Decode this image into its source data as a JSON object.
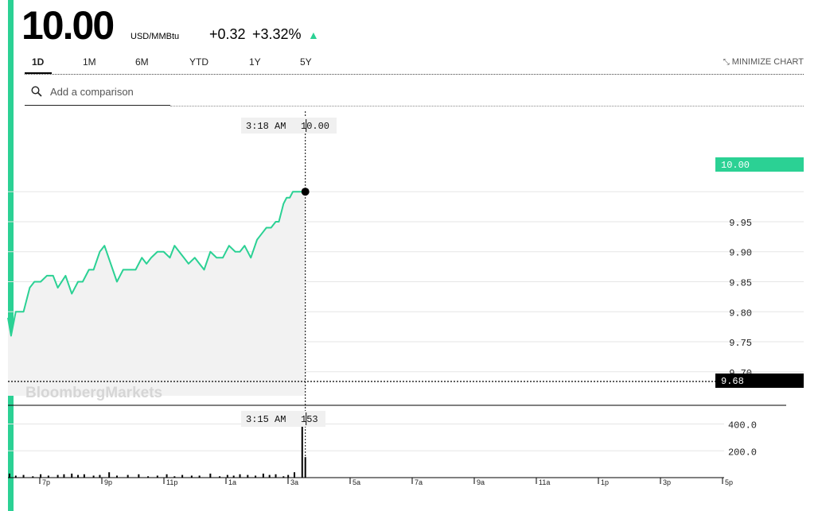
{
  "header": {
    "price": "10.00",
    "unit": "USD/MMBtu",
    "change": "+0.32",
    "change_pct": "+3.32%",
    "direction_icon": "up-triangle-icon"
  },
  "tabs": [
    {
      "label": "1D",
      "active": true
    },
    {
      "label": "1M",
      "active": false
    },
    {
      "label": "6M",
      "active": false
    },
    {
      "label": "YTD",
      "active": false
    },
    {
      "label": "1Y",
      "active": false
    },
    {
      "label": "5Y",
      "active": false
    }
  ],
  "minimize_label": "MINIMIZE CHART",
  "search": {
    "placeholder": "Add a comparison"
  },
  "watermark": "BloombergMarkets",
  "colors": {
    "accent": "#2bd194",
    "line": "#2bd194",
    "fill": "#f2f2f2",
    "axis_badge": "#000000"
  },
  "chart_data": [
    {
      "type": "line",
      "title": "",
      "ylim": [
        9.66,
        10.13
      ],
      "y_ticks": [
        "9.70",
        "9.75",
        "9.80",
        "9.85",
        "9.90",
        "9.95"
      ],
      "current_value_label": "10.00",
      "low_value_label": "9.68",
      "crosshair": {
        "time": "3:18 AM",
        "value": "10.00"
      },
      "x_range_hours": [
        17.5,
        40.5
      ],
      "x": [
        17.5,
        17.6,
        17.75,
        18.0,
        18.2,
        18.35,
        18.55,
        18.75,
        18.95,
        19.1,
        19.35,
        19.55,
        19.75,
        19.9,
        20.1,
        20.25,
        20.45,
        20.6,
        20.8,
        21.0,
        21.1,
        21.2,
        21.4,
        21.6,
        21.8,
        21.95,
        22.1,
        22.3,
        22.5,
        22.7,
        22.85,
        23.0,
        23.15,
        23.3,
        23.5,
        23.65,
        23.8,
        24.0,
        24.2,
        24.4,
        24.6,
        24.8,
        24.95,
        25.1,
        25.3,
        25.5,
        25.65,
        25.8,
        25.95,
        26.1,
        26.2,
        26.3,
        26.35,
        26.45,
        26.55,
        26.65,
        26.75,
        26.9,
        27.0,
        27.05
      ],
      "values": [
        9.79,
        9.76,
        9.8,
        9.8,
        9.84,
        9.85,
        9.85,
        9.86,
        9.86,
        9.84,
        9.86,
        9.83,
        9.85,
        9.85,
        9.87,
        9.87,
        9.9,
        9.91,
        9.88,
        9.85,
        9.86,
        9.87,
        9.87,
        9.87,
        9.89,
        9.88,
        9.89,
        9.9,
        9.9,
        9.89,
        9.91,
        9.9,
        9.89,
        9.88,
        9.89,
        9.88,
        9.87,
        9.9,
        9.89,
        9.89,
        9.91,
        9.9,
        9.9,
        9.91,
        9.89,
        9.92,
        9.93,
        9.94,
        9.94,
        9.95,
        9.95,
        9.97,
        9.98,
        9.99,
        9.99,
        10.0,
        10.0,
        10.0,
        10.0,
        10.0
      ]
    },
    {
      "type": "bar",
      "title": "",
      "ylim": [
        0,
        480
      ],
      "y_ticks": [
        "400.0",
        "200.0"
      ],
      "crosshair": {
        "time": "3:15 AM",
        "value": "153"
      },
      "x": [
        17.55,
        17.75,
        18.0,
        18.3,
        18.55,
        18.8,
        19.1,
        19.3,
        19.55,
        19.75,
        19.95,
        20.25,
        20.45,
        20.75,
        21.0,
        21.35,
        21.7,
        22.0,
        22.3,
        22.6,
        22.85,
        23.1,
        23.4,
        23.65,
        24.0,
        24.3,
        24.55,
        24.75,
        24.95,
        25.2,
        25.45,
        25.7,
        25.9,
        26.1,
        26.35,
        26.5,
        26.7,
        26.95,
        27.05
      ],
      "values": [
        30,
        15,
        20,
        10,
        25,
        15,
        20,
        25,
        30,
        20,
        25,
        15,
        20,
        40,
        15,
        20,
        25,
        10,
        15,
        25,
        10,
        20,
        15,
        15,
        30,
        10,
        20,
        15,
        25,
        20,
        15,
        30,
        20,
        25,
        10,
        20,
        40,
        460,
        153
      ]
    }
  ],
  "x_axis": {
    "tick_labels": [
      "7p",
      "9p",
      "11p",
      "1a",
      "3a",
      "5a",
      "7a",
      "9a",
      "11a",
      "1p",
      "3p",
      "5p"
    ]
  }
}
